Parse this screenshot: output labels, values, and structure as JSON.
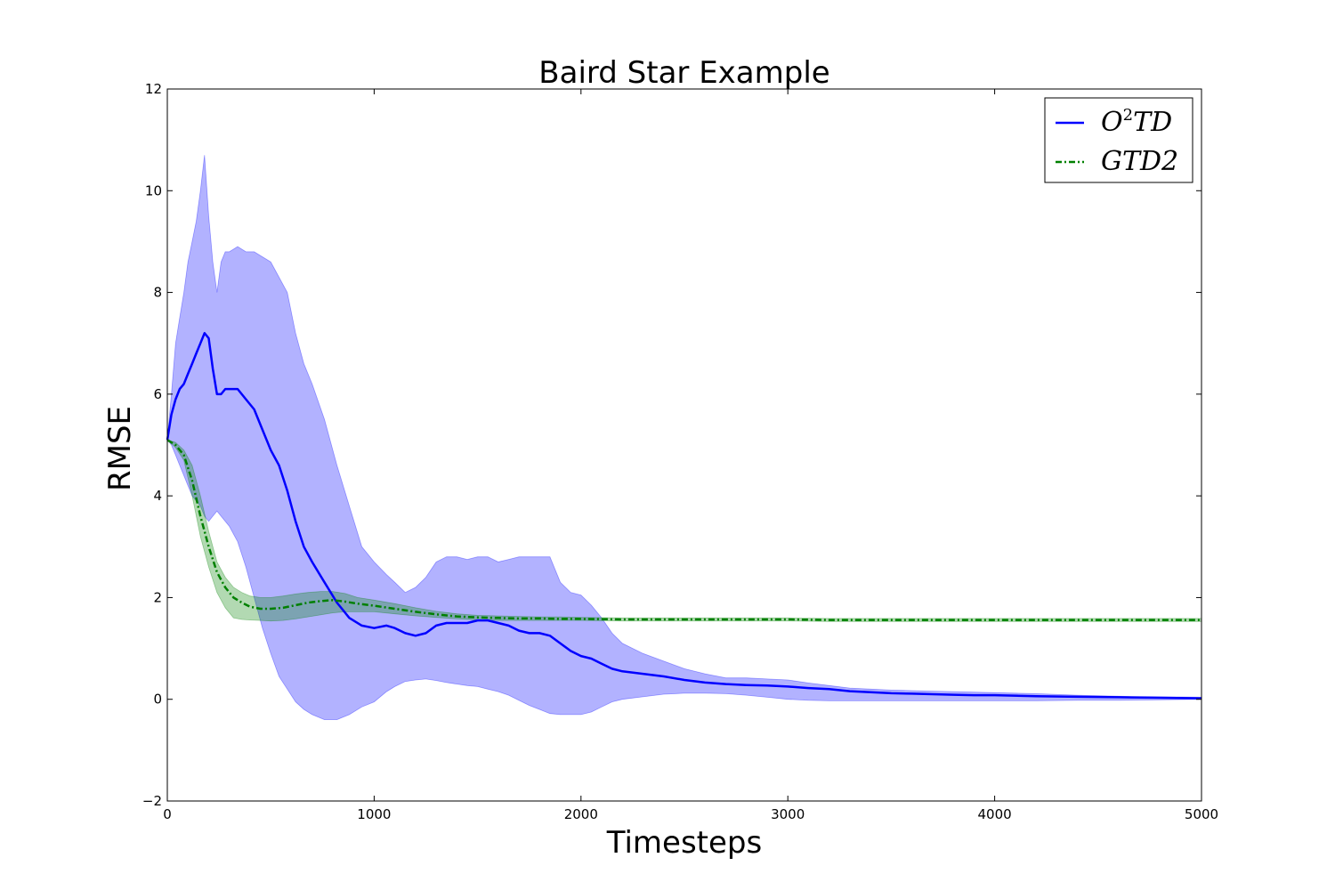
{
  "chart_data": {
    "type": "line",
    "title": "Baird Star Example",
    "xlabel": "Timesteps",
    "ylabel": "RMSE",
    "xlim": [
      0,
      5000
    ],
    "ylim": [
      -2,
      12
    ],
    "xticks": [
      0,
      1000,
      2000,
      3000,
      4000,
      5000
    ],
    "yticks": [
      -2,
      0,
      2,
      4,
      6,
      8,
      10,
      12
    ],
    "xtick_labels": [
      "0",
      "1000",
      "2000",
      "3000",
      "4000",
      "5000"
    ],
    "ytick_labels": [
      "−2",
      "0",
      "2",
      "4",
      "6",
      "8",
      "10",
      "12"
    ],
    "grid": false,
    "legend_position": "top-right",
    "series": [
      {
        "name": "O²TD",
        "name_base": "O",
        "name_sup": "2",
        "name_rest": "TD",
        "color": "#0000ff",
        "band_color": "#0000ff",
        "style": "solid",
        "x": [
          0,
          20,
          40,
          60,
          80,
          100,
          120,
          140,
          160,
          180,
          200,
          220,
          240,
          260,
          280,
          300,
          340,
          380,
          420,
          460,
          500,
          540,
          580,
          620,
          660,
          700,
          760,
          820,
          880,
          940,
          1000,
          1060,
          1100,
          1150,
          1200,
          1250,
          1300,
          1350,
          1400,
          1450,
          1500,
          1550,
          1600,
          1650,
          1700,
          1750,
          1800,
          1850,
          1900,
          1950,
          2000,
          2050,
          2100,
          2150,
          2200,
          2300,
          2400,
          2500,
          2600,
          2700,
          2800,
          2900,
          3000,
          3100,
          3200,
          3300,
          3400,
          3500,
          3600,
          3700,
          3800,
          3900,
          4000,
          4200,
          4400,
          4600,
          4800,
          5000
        ],
        "y": [
          5.1,
          5.6,
          5.9,
          6.1,
          6.2,
          6.4,
          6.6,
          6.8,
          7.0,
          7.2,
          7.1,
          6.5,
          6.0,
          6.0,
          6.1,
          6.1,
          6.1,
          5.9,
          5.7,
          5.3,
          4.9,
          4.6,
          4.1,
          3.5,
          3.0,
          2.7,
          2.3,
          1.9,
          1.6,
          1.45,
          1.4,
          1.45,
          1.4,
          1.3,
          1.25,
          1.3,
          1.45,
          1.5,
          1.5,
          1.5,
          1.55,
          1.55,
          1.5,
          1.45,
          1.35,
          1.3,
          1.3,
          1.25,
          1.1,
          0.95,
          0.85,
          0.8,
          0.7,
          0.6,
          0.55,
          0.5,
          0.45,
          0.38,
          0.33,
          0.3,
          0.28,
          0.27,
          0.25,
          0.22,
          0.2,
          0.16,
          0.14,
          0.12,
          0.11,
          0.1,
          0.09,
          0.08,
          0.08,
          0.06,
          0.05,
          0.04,
          0.03,
          0.02
        ],
        "upper": [
          5.1,
          6.0,
          7.0,
          7.5,
          8.0,
          8.6,
          9.0,
          9.4,
          10.0,
          10.7,
          9.5,
          8.6,
          8.0,
          8.6,
          8.8,
          8.8,
          8.9,
          8.8,
          8.8,
          8.7,
          8.6,
          8.3,
          8.0,
          7.2,
          6.6,
          6.2,
          5.5,
          4.6,
          3.8,
          3.0,
          2.7,
          2.45,
          2.3,
          2.1,
          2.2,
          2.4,
          2.7,
          2.8,
          2.8,
          2.75,
          2.8,
          2.8,
          2.7,
          2.75,
          2.8,
          2.8,
          2.8,
          2.8,
          2.3,
          2.1,
          2.05,
          1.85,
          1.6,
          1.3,
          1.1,
          0.9,
          0.75,
          0.6,
          0.5,
          0.42,
          0.42,
          0.4,
          0.38,
          0.32,
          0.27,
          0.22,
          0.2,
          0.18,
          0.17,
          0.16,
          0.15,
          0.14,
          0.13,
          0.11,
          0.08,
          0.06,
          0.05,
          0.04
        ],
        "lower": [
          5.1,
          5.0,
          4.8,
          4.6,
          4.4,
          4.2,
          4.0,
          3.9,
          3.8,
          3.6,
          3.5,
          3.6,
          3.7,
          3.6,
          3.5,
          3.4,
          3.1,
          2.6,
          2.0,
          1.4,
          0.9,
          0.45,
          0.2,
          -0.05,
          -0.2,
          -0.3,
          -0.4,
          -0.4,
          -0.3,
          -0.15,
          -0.05,
          0.15,
          0.25,
          0.35,
          0.38,
          0.4,
          0.37,
          0.33,
          0.3,
          0.27,
          0.25,
          0.2,
          0.15,
          0.08,
          -0.02,
          -0.12,
          -0.2,
          -0.28,
          -0.3,
          -0.3,
          -0.3,
          -0.25,
          -0.15,
          -0.05,
          0.0,
          0.05,
          0.1,
          0.12,
          0.12,
          0.11,
          0.08,
          0.04,
          0.0,
          -0.02,
          -0.03,
          -0.03,
          -0.03,
          -0.03,
          -0.03,
          -0.03,
          -0.03,
          -0.03,
          -0.03,
          -0.03,
          -0.02,
          -0.02,
          -0.01,
          0.0
        ]
      },
      {
        "name": "GTD2",
        "color": "#008000",
        "band_color": "#008000",
        "style": "dashdot",
        "x": [
          0,
          40,
          80,
          120,
          160,
          200,
          240,
          280,
          320,
          360,
          400,
          450,
          500,
          560,
          620,
          680,
          740,
          800,
          860,
          920,
          1000,
          1100,
          1200,
          1300,
          1400,
          1500,
          1600,
          1700,
          1800,
          1900,
          2000,
          2200,
          2400,
          2600,
          2800,
          3000,
          3200,
          3400,
          3600,
          3800,
          4000,
          4200,
          4400,
          4600,
          4800,
          5000
        ],
        "y": [
          5.1,
          5.0,
          4.8,
          4.3,
          3.6,
          3.0,
          2.5,
          2.2,
          2.0,
          1.9,
          1.82,
          1.78,
          1.78,
          1.8,
          1.85,
          1.9,
          1.93,
          1.95,
          1.92,
          1.88,
          1.84,
          1.78,
          1.72,
          1.67,
          1.63,
          1.61,
          1.6,
          1.59,
          1.59,
          1.58,
          1.58,
          1.57,
          1.57,
          1.57,
          1.57,
          1.57,
          1.56,
          1.56,
          1.56,
          1.56,
          1.56,
          1.56,
          1.56,
          1.56,
          1.56,
          1.56
        ],
        "upper": [
          5.1,
          5.05,
          4.9,
          4.6,
          4.0,
          3.3,
          2.7,
          2.4,
          2.2,
          2.1,
          2.03,
          2.0,
          2.0,
          2.03,
          2.07,
          2.1,
          2.12,
          2.12,
          2.08,
          2.0,
          1.95,
          1.88,
          1.8,
          1.73,
          1.68,
          1.65,
          1.64,
          1.63,
          1.62,
          1.62,
          1.61,
          1.6,
          1.6,
          1.6,
          1.6,
          1.6,
          1.59,
          1.59,
          1.59,
          1.59,
          1.59,
          1.59,
          1.59,
          1.59,
          1.59,
          1.59
        ],
        "lower": [
          5.1,
          4.95,
          4.7,
          4.0,
          3.2,
          2.6,
          2.1,
          1.8,
          1.6,
          1.57,
          1.56,
          1.55,
          1.54,
          1.55,
          1.58,
          1.62,
          1.66,
          1.7,
          1.72,
          1.72,
          1.72,
          1.68,
          1.64,
          1.61,
          1.58,
          1.56,
          1.55,
          1.55,
          1.55,
          1.55,
          1.55,
          1.54,
          1.54,
          1.54,
          1.54,
          1.54,
          1.53,
          1.53,
          1.53,
          1.53,
          1.53,
          1.53,
          1.53,
          1.53,
          1.53,
          1.53
        ]
      }
    ]
  }
}
